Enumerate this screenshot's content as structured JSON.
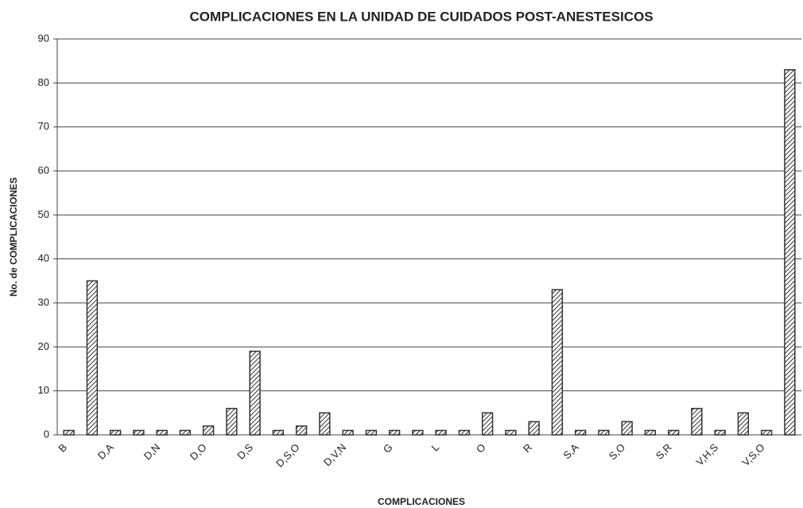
{
  "chart_data": {
    "type": "bar",
    "title": "COMPLICACIONES EN LA UNIDAD DE CUIDADOS POST-ANESTESICOS",
    "x_label": "COMPLICACIONES",
    "y_label": "No. de COMPLICACIONES",
    "categories": [
      "B",
      null,
      "D,A",
      null,
      "D,N",
      null,
      "D,O",
      null,
      "D,S",
      null,
      "D,S,O",
      null,
      "D,V,N",
      null,
      "G",
      null,
      "L",
      null,
      "O",
      null,
      "R",
      null,
      "S,A",
      null,
      "S,O",
      null,
      "S,R",
      null,
      "V,H,S",
      null,
      "V,S,O",
      null
    ],
    "values": [
      1,
      35,
      1,
      1,
      1,
      1,
      2,
      6,
      19,
      1,
      2,
      5,
      1,
      1,
      1,
      1,
      1,
      1,
      5,
      1,
      3,
      33,
      1,
      1,
      3,
      1,
      1,
      6,
      1,
      5,
      1,
      83
    ],
    "color": "#333333",
    "ylim": [
      0,
      90
    ],
    "yticks": [
      0,
      10,
      20,
      30,
      40,
      50,
      60,
      70,
      80,
      90
    ],
    "grid": true
  }
}
